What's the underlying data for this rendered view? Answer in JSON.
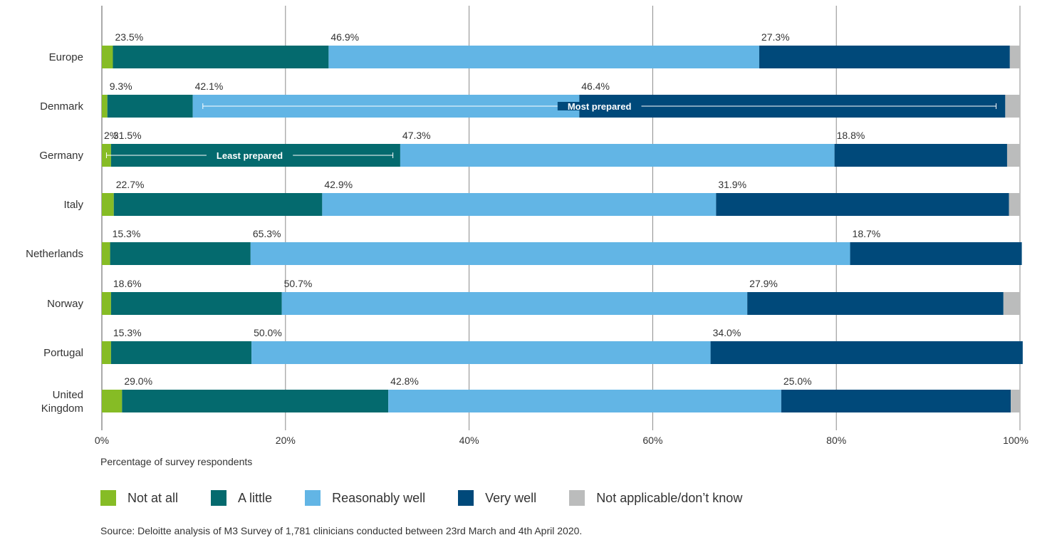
{
  "chart_data": {
    "type": "bar",
    "orientation": "horizontal",
    "stacked": true,
    "categories": [
      "Europe",
      "Denmark",
      "Germany",
      "Italy",
      "Netherlands",
      "Norway",
      "Portugal",
      "United Kingdom"
    ],
    "series": [
      {
        "name": "Not at all",
        "color": "#86BC25",
        "values": [
          1.2,
          0.6,
          1.0,
          1.3,
          0.9,
          1.0,
          1.0,
          2.2
        ],
        "labels": [
          "",
          "",
          "2%",
          "",
          "",
          "",
          "",
          ""
        ]
      },
      {
        "name": "A little",
        "color": "#046A6E",
        "values": [
          23.5,
          9.3,
          31.5,
          22.7,
          15.3,
          18.6,
          15.3,
          29.0
        ],
        "labels": [
          "23.5%",
          "9.3%",
          "31.5%",
          "22.7%",
          "15.3%",
          "18.6%",
          "15.3%",
          "29.0%"
        ]
      },
      {
        "name": "Reasonably well",
        "color": "#62B5E5",
        "values": [
          46.9,
          42.1,
          47.3,
          42.9,
          65.3,
          50.7,
          50.0,
          42.8
        ],
        "labels": [
          "46.9%",
          "42.1%",
          "47.3%",
          "42.9%",
          "65.3%",
          "50.7%",
          "50.0%",
          "42.8%"
        ]
      },
      {
        "name": "Very well",
        "color": "#00497A",
        "values": [
          27.3,
          46.4,
          18.8,
          31.9,
          18.7,
          27.9,
          34.0,
          25.0
        ],
        "labels": [
          "27.3%",
          "46.4%",
          "18.8%",
          "31.9%",
          "18.7%",
          "27.9%",
          "34.0%",
          "25.0%"
        ]
      },
      {
        "name": "Not applicable/don’t know",
        "color": "#BBBCBC",
        "values": [
          0.7,
          1.3,
          1.0,
          1.1,
          0.0,
          2.7,
          0.0,
          0.0
        ],
        "labels": [
          "",
          "",
          "",
          "",
          "",
          "",
          "",
          ""
        ]
      }
    ],
    "xlim": [
      0,
      100
    ],
    "xticks": [
      "0%",
      "20%",
      "40%",
      "60%",
      "80%",
      "100%"
    ],
    "xlabel": "Percentage of survey respondents",
    "grid": "vertical",
    "legend": "bottom",
    "annotations": [
      {
        "category": "Denmark",
        "text": "Most prepared",
        "from": 11,
        "to": 97.4
      },
      {
        "category": "Germany",
        "text": "Least prepared",
        "from": 0.5,
        "to": 31.7
      }
    ]
  },
  "source": "Source: Deloitte analysis of M3 Survey of 1,781 clinicians conducted between 23rd March and 4th April 2020."
}
